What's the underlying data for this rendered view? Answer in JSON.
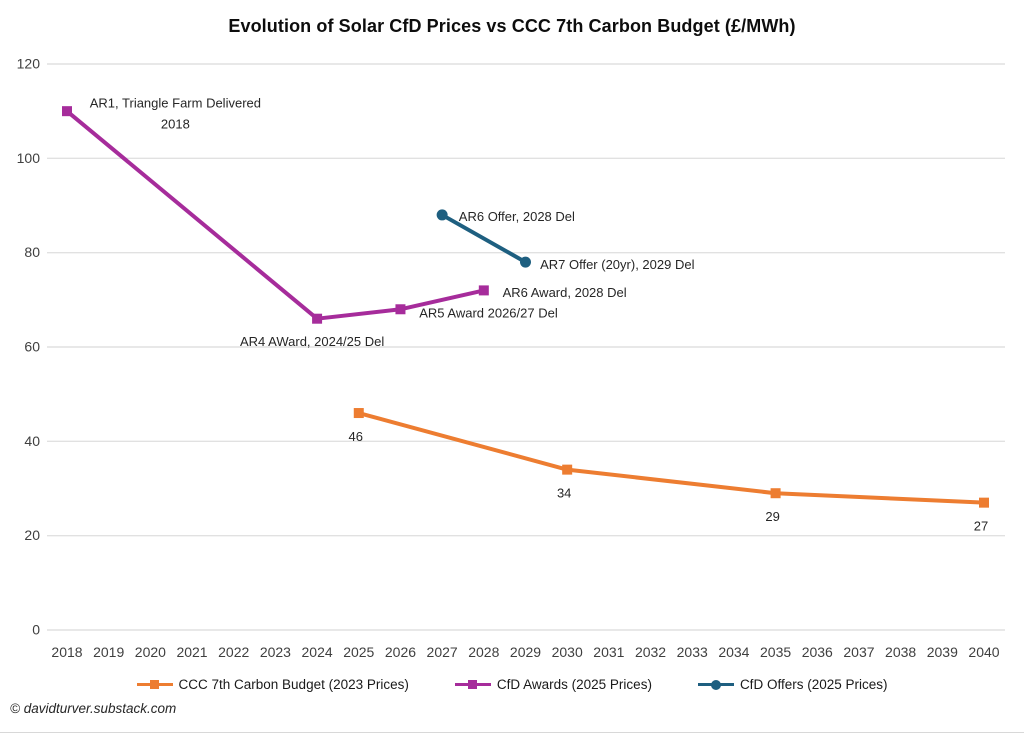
{
  "page": {
    "footer_credit": "© davidturver.substack.com"
  },
  "chart_data": {
    "type": "line",
    "title": "Evolution of Solar CfD Prices vs CCC 7th Carbon Budget (£/MWh)",
    "xlabel": "",
    "ylabel": "",
    "xlim": [
      2018,
      2040
    ],
    "ylim": [
      0,
      120
    ],
    "x_ticks": [
      2018,
      2019,
      2020,
      2021,
      2022,
      2023,
      2024,
      2025,
      2026,
      2027,
      2028,
      2029,
      2030,
      2031,
      2032,
      2033,
      2034,
      2035,
      2036,
      2037,
      2038,
      2039,
      2040
    ],
    "y_ticks": [
      0,
      20,
      40,
      60,
      80,
      100,
      120
    ],
    "grid": true,
    "grid_color": "#E1E1E1",
    "background": "#FFFFFF",
    "legend_position": "bottom",
    "series": [
      {
        "name": "CCC 7th Carbon Budget (2023 Prices)",
        "color": "#ED7D31",
        "marker": "square",
        "x": [
          2025,
          2030,
          2035,
          2040
        ],
        "y": [
          46,
          34,
          29,
          27
        ],
        "point_labels": [
          "46",
          "34",
          "29",
          "27"
        ]
      },
      {
        "name": "CfD Awards (2025 Prices)",
        "color": "#A62C9B",
        "marker": "square",
        "x": [
          2018,
          2024,
          2026,
          2028
        ],
        "y": [
          110,
          66,
          68,
          72
        ],
        "point_labels": null
      },
      {
        "name": "CfD Offers (2025 Prices)",
        "color": "#1E5F80",
        "marker": "circle",
        "x": [
          2027,
          2029
        ],
        "y": [
          88,
          78
        ],
        "point_labels": null
      }
    ],
    "annotations": [
      {
        "lines": [
          "AR1, Triangle Farm Delivered",
          "2018"
        ],
        "x": 2020.6,
        "y": 111.7,
        "align": "center"
      },
      {
        "lines": [
          "AR4 AWard, 2024/25 Del"
        ],
        "x": 2022.15,
        "y": 61.2,
        "align": "left"
      },
      {
        "lines": [
          "AR5 Award 2026/27 Del"
        ],
        "x": 2026.45,
        "y": 67.2,
        "align": "left"
      },
      {
        "lines": [
          "AR6 Award, 2028 Del"
        ],
        "x": 2028.45,
        "y": 71.6,
        "align": "left"
      },
      {
        "lines": [
          "AR6 Offer, 2028 Del"
        ],
        "x": 2027.4,
        "y": 87.7,
        "align": "left"
      },
      {
        "lines": [
          "AR7 Offer (20yr), 2029 Del"
        ],
        "x": 2029.35,
        "y": 77.5,
        "align": "left"
      }
    ]
  }
}
